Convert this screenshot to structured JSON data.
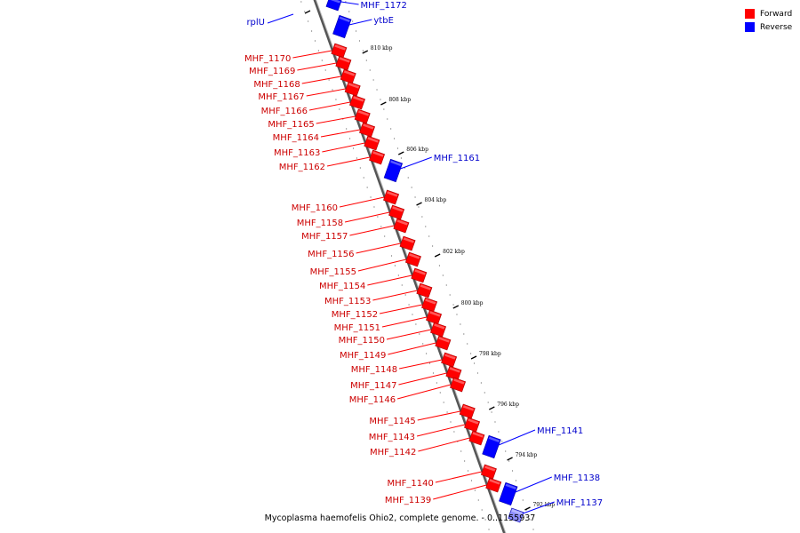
{
  "legend": {
    "forward": {
      "label": "Forward",
      "color": "#ff0000"
    },
    "reverse": {
      "label": "Reverse",
      "color": "#0000ff"
    }
  },
  "caption": "Mycoplasma haemofelis Ohio2, complete genome. - 0..1155937",
  "colors": {
    "forward": "#ff0000",
    "reverse": "#0000ff",
    "axis": "#808080",
    "label_forward": "#cc0000",
    "label_reverse": "#0000cc"
  },
  "ticks": [
    {
      "kbp": 810,
      "label": "810 kbp"
    },
    {
      "kbp": 808,
      "label": "808 kbp"
    },
    {
      "kbp": 806,
      "label": "806 kbp"
    },
    {
      "kbp": 804,
      "label": "804 kbp"
    },
    {
      "kbp": 802,
      "label": "802 kbp"
    },
    {
      "kbp": 800,
      "label": "800 kbp"
    },
    {
      "kbp": 798,
      "label": "798 kbp"
    },
    {
      "kbp": 796,
      "label": "796 kbp"
    },
    {
      "kbp": 794,
      "label": "794 kbp"
    },
    {
      "kbp": 792,
      "label": "792 kbp"
    }
  ],
  "genes_forward": [
    {
      "name": "MHF_1170"
    },
    {
      "name": "MHF_1169"
    },
    {
      "name": "MHF_1168"
    },
    {
      "name": "MHF_1167"
    },
    {
      "name": "MHF_1166"
    },
    {
      "name": "MHF_1165"
    },
    {
      "name": "MHF_1164"
    },
    {
      "name": "MHF_1163"
    },
    {
      "name": "MHF_1162"
    },
    {
      "name": "MHF_1160"
    },
    {
      "name": "MHF_1158"
    },
    {
      "name": "MHF_1157"
    },
    {
      "name": "MHF_1156"
    },
    {
      "name": "MHF_1155"
    },
    {
      "name": "MHF_1154"
    },
    {
      "name": "MHF_1153"
    },
    {
      "name": "MHF_1152"
    },
    {
      "name": "MHF_1151"
    },
    {
      "name": "MHF_1150"
    },
    {
      "name": "MHF_1149"
    },
    {
      "name": "MHF_1148"
    },
    {
      "name": "MHF_1147"
    },
    {
      "name": "MHF_1146"
    },
    {
      "name": "MHF_1145"
    },
    {
      "name": "MHF_1143"
    },
    {
      "name": "MHF_1142"
    },
    {
      "name": "MHF_1140"
    },
    {
      "name": "MHF_1139"
    }
  ],
  "genes_reverse": [
    {
      "name": "MHF_1172"
    },
    {
      "name": "ytbE"
    },
    {
      "name": "MHF_1161"
    },
    {
      "name": "MHF_1141"
    },
    {
      "name": "MHF_1138"
    },
    {
      "name": "MHF_1137"
    }
  ],
  "gene_left_label": {
    "name": "rplU"
  }
}
